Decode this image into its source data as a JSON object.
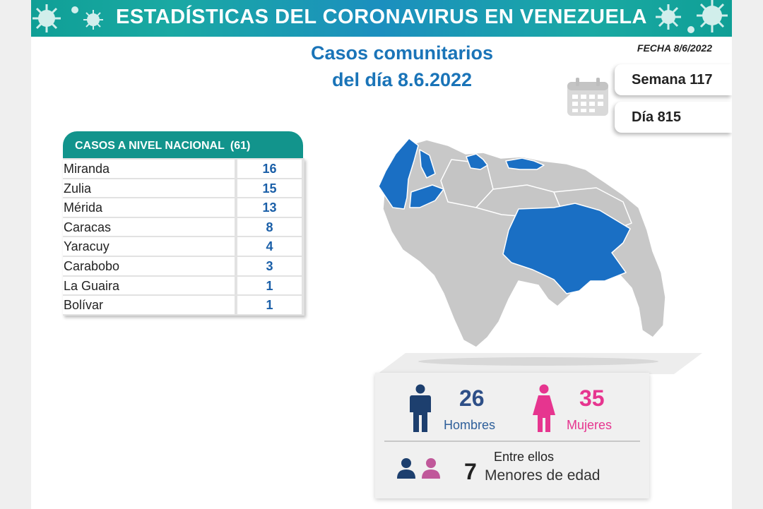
{
  "header": {
    "title": "ESTADÍSTICAS DEL CORONAVIRUS EN VENEZUELA"
  },
  "heading": {
    "line1": "Casos comunitarios",
    "line2": "del día 8.6.2022"
  },
  "fecha": "FECHA 8/6/2022",
  "semana": "Semana 117",
  "dia": "Día 815",
  "table": {
    "title": "CASOS A NIVEL NACIONAL",
    "total": "(61)",
    "rows": [
      {
        "state": "Miranda",
        "cases": "16"
      },
      {
        "state": "Zulia",
        "cases": "15"
      },
      {
        "state": "Mérida",
        "cases": "13"
      },
      {
        "state": "Caracas",
        "cases": "8"
      },
      {
        "state": "Yaracuy",
        "cases": "4"
      },
      {
        "state": "Carabobo",
        "cases": "3"
      },
      {
        "state": "La Guaira",
        "cases": "1"
      },
      {
        "state": "Bolívar",
        "cases": "1"
      }
    ]
  },
  "map": {
    "highlight_color": "#1a6fc4",
    "base_color": "#c8c8c8",
    "highlighted_states": [
      "Zulia",
      "Mérida",
      "Yaracuy",
      "Carabobo",
      "Miranda",
      "Caracas",
      "La Guaira",
      "Bolívar"
    ]
  },
  "stats": {
    "hombres_count": "26",
    "hombres_label": "Hombres",
    "mujeres_count": "35",
    "mujeres_label": "Mujeres",
    "entre_ellos": "Entre ellos",
    "menores_count": "7",
    "menores_label": "Menores de edad"
  },
  "colors": {
    "banner": "#1a9fa8",
    "table_header": "#12948c",
    "heading": "#1a74b8",
    "men": "#2e4f87",
    "women": "#e6358f"
  }
}
